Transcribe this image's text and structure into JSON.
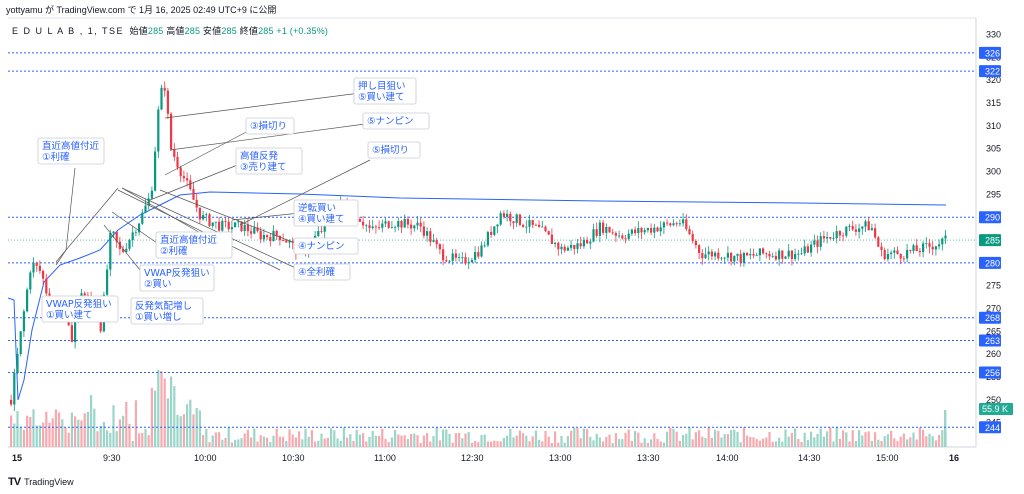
{
  "header": {
    "byline": "yottyamu が TradingView.com で 1月 16, 2025 02:49 UTC+9 に公開"
  },
  "ohlc": {
    "symbol": "E D U L A B , 1, TSE",
    "open_label": "始値",
    "open": "285",
    "high_label": "高値",
    "high": "285",
    "low_label": "安値",
    "low": "285",
    "close_label": "終値",
    "close": "285",
    "change": "+1 (+0.35%)"
  },
  "footer": {
    "brand": "TradingView",
    "logo": "TV"
  },
  "colors": {
    "up": "#089981",
    "down": "#f23645",
    "vwap": "#2962ff",
    "annotation": "#2962ff",
    "level": "#2962ff"
  },
  "chart_data": {
    "type": "candlestick",
    "price_axis_ticks": [
      245,
      250,
      255,
      260,
      265,
      270,
      275,
      280,
      285,
      290,
      295,
      300,
      305,
      310,
      315,
      320,
      325,
      330
    ],
    "price_range": [
      241,
      331
    ],
    "time_labels": [
      "15",
      "9:30",
      "10:00",
      "10:30",
      "11:00",
      "12:30",
      "13:00",
      "13:30",
      "14:00",
      "14:30",
      "15:00",
      "16"
    ],
    "horizontal_levels": [
      {
        "label": "326",
        "value": 326
      },
      {
        "label": "322",
        "value": 322
      },
      {
        "label": "290",
        "value": 290
      },
      {
        "label": "280",
        "value": 280
      },
      {
        "label": "268",
        "value": 268
      },
      {
        "label": "263",
        "value": 263
      },
      {
        "label": "256",
        "value": 256
      },
      {
        "label": "244",
        "value": 244
      }
    ],
    "last_price": {
      "label": "285",
      "value": 285
    },
    "volume_label": "55.9 K",
    "annotations": [
      {
        "text": "直近高値付近",
        "text2": "①利確"
      },
      {
        "text": "VWAP反発狙い",
        "text2": "①買い建て"
      },
      {
        "text": "反発気配増し",
        "text2": "①買い増し"
      },
      {
        "text": "VWAP反発狙い",
        "text2": "②買い"
      },
      {
        "text": "直近高値付近",
        "text2": "②利確"
      },
      {
        "text": "高値反発",
        "text2": "③売り建て"
      },
      {
        "text": "③損切り",
        "text2": ""
      },
      {
        "text": "押し目狙い",
        "text2": "⑤買い建て"
      },
      {
        "text": "⑤ナンピン",
        "text2": ""
      },
      {
        "text": "⑤損切り",
        "text2": ""
      },
      {
        "text": "逆転買い",
        "text2": "④買い建て"
      },
      {
        "text": "④ナンピン",
        "text2": ""
      },
      {
        "text": "④全利確",
        "text2": ""
      }
    ]
  }
}
